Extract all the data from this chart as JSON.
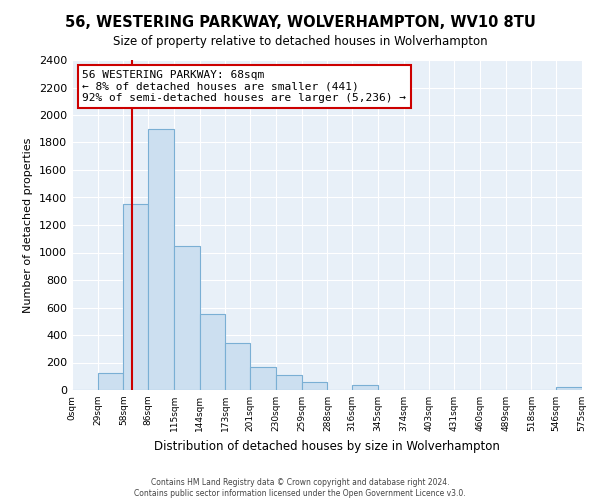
{
  "title": "56, WESTERING PARKWAY, WOLVERHAMPTON, WV10 8TU",
  "subtitle": "Size of property relative to detached houses in Wolverhampton",
  "xlabel": "Distribution of detached houses by size in Wolverhampton",
  "ylabel": "Number of detached properties",
  "bar_edges": [
    0,
    29,
    58,
    86,
    115,
    144,
    173,
    201,
    230,
    259,
    288,
    316,
    345,
    374,
    403,
    431,
    460,
    489,
    518,
    546,
    575
  ],
  "bar_heights": [
    0,
    125,
    1350,
    1900,
    1050,
    550,
    340,
    165,
    110,
    60,
    0,
    35,
    0,
    0,
    0,
    0,
    0,
    0,
    0,
    25
  ],
  "bar_color": "#ccdff0",
  "bar_edge_color": "#7aafd4",
  "vline_x": 68,
  "vline_color": "#cc0000",
  "annotation_title": "56 WESTERING PARKWAY: 68sqm",
  "annotation_line1": "← 8% of detached houses are smaller (441)",
  "annotation_line2": "92% of semi-detached houses are larger (5,236) →",
  "annotation_box_edge_color": "#cc0000",
  "annotation_box_face_color": "#ffffff",
  "tick_labels": [
    "0sqm",
    "29sqm",
    "58sqm",
    "86sqm",
    "115sqm",
    "144sqm",
    "173sqm",
    "201sqm",
    "230sqm",
    "259sqm",
    "288sqm",
    "316sqm",
    "345sqm",
    "374sqm",
    "403sqm",
    "431sqm",
    "460sqm",
    "489sqm",
    "518sqm",
    "546sqm",
    "575sqm"
  ],
  "ylim": [
    0,
    2400
  ],
  "yticks": [
    0,
    200,
    400,
    600,
    800,
    1000,
    1200,
    1400,
    1600,
    1800,
    2000,
    2200,
    2400
  ],
  "footer_line1": "Contains HM Land Registry data © Crown copyright and database right 2024.",
  "footer_line2": "Contains public sector information licensed under the Open Government Licence v3.0.",
  "background_color": "#ffffff",
  "plot_bg_color": "#e8f0f8",
  "grid_color": "#ffffff"
}
